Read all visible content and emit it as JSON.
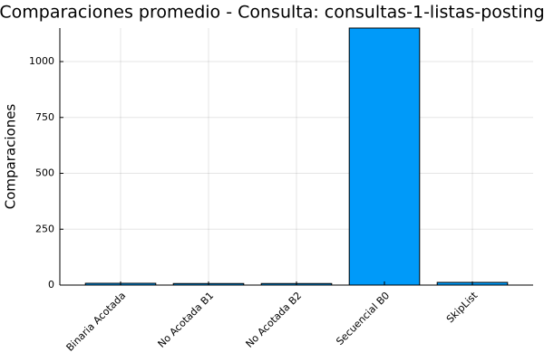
{
  "chart_data": {
    "type": "bar",
    "title": "Comparaciones promedio - Consulta: consultas-1-listas-posting",
    "ylabel": "Comparaciones",
    "categories": [
      "Binaria Acotada",
      "No Acotada B1",
      "No Acotada B2",
      "Secuencial B0",
      "SkipList"
    ],
    "values": [
      8,
      7,
      7,
      1150,
      12
    ],
    "color": "#009af9",
    "ylim": [
      0,
      1150
    ],
    "yticks": [
      0,
      250,
      500,
      750,
      1000
    ],
    "grid": true
  }
}
